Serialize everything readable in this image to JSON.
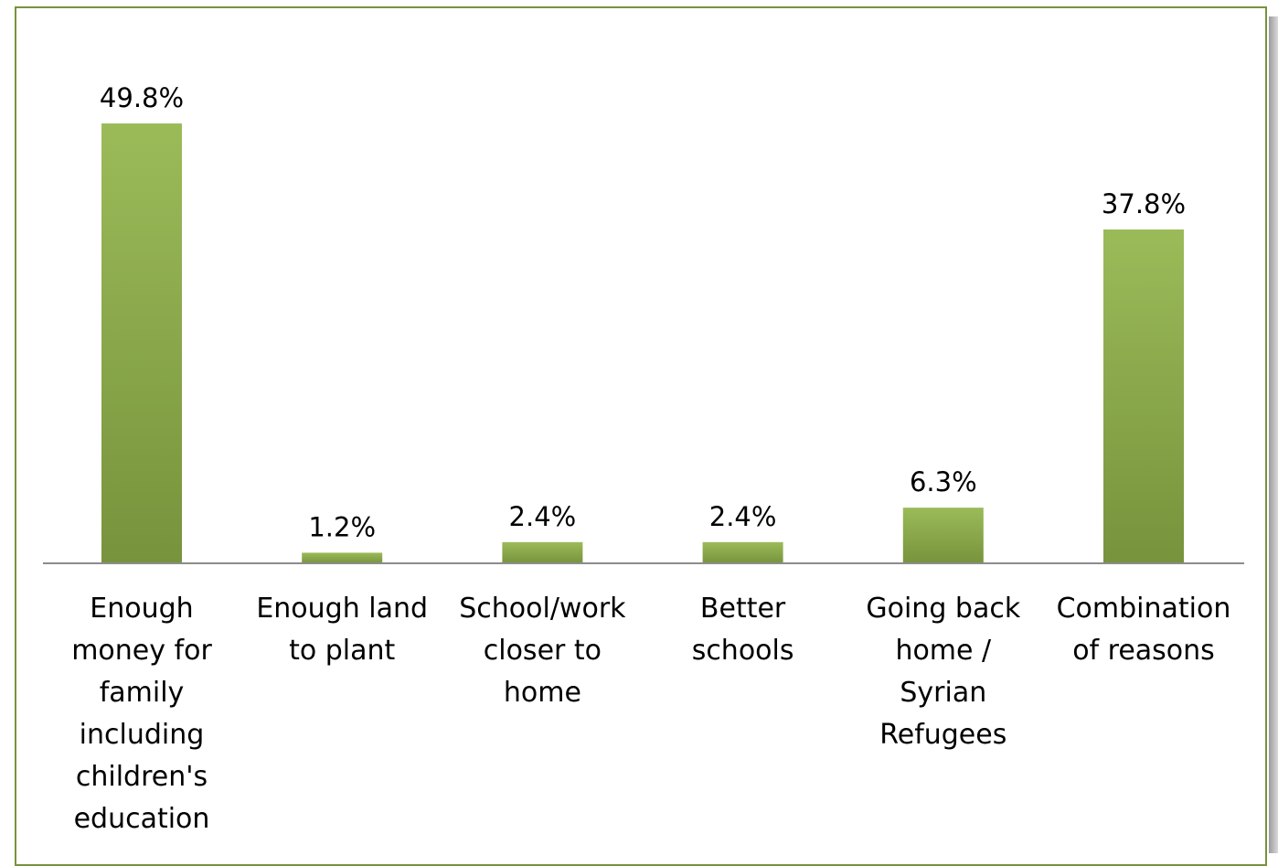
{
  "colors": {
    "bar": "#77933c",
    "bar_light": "#9bbb59",
    "frame": "#77933c",
    "axis": "#8c8c8c"
  },
  "chart_data": {
    "type": "bar",
    "categories": [
      "Enough money for family including children's education",
      "Enough land to plant",
      "School/work closer to home",
      "Better schools",
      "Going back home / Syrian Refugees",
      "Combination of reasons"
    ],
    "category_lines": [
      [
        "Enough",
        "money for",
        "family",
        "including",
        "children's",
        "education"
      ],
      [
        "Enough land",
        "to plant"
      ],
      [
        "School/work",
        "closer to",
        "home"
      ],
      [
        "Better",
        "schools"
      ],
      [
        "Going back",
        "home /",
        "Syrian",
        "Refugees"
      ],
      [
        "Combination",
        "of reasons"
      ]
    ],
    "values": [
      49.8,
      1.2,
      2.4,
      2.4,
      6.3,
      37.8
    ],
    "data_labels": [
      "49.8%",
      "1.2%",
      "2.4%",
      "2.4%",
      "6.3%",
      "37.8%"
    ],
    "ylim": [
      0,
      55
    ],
    "grid": false,
    "legend": "none",
    "title": "",
    "xlabel": "",
    "ylabel": ""
  }
}
